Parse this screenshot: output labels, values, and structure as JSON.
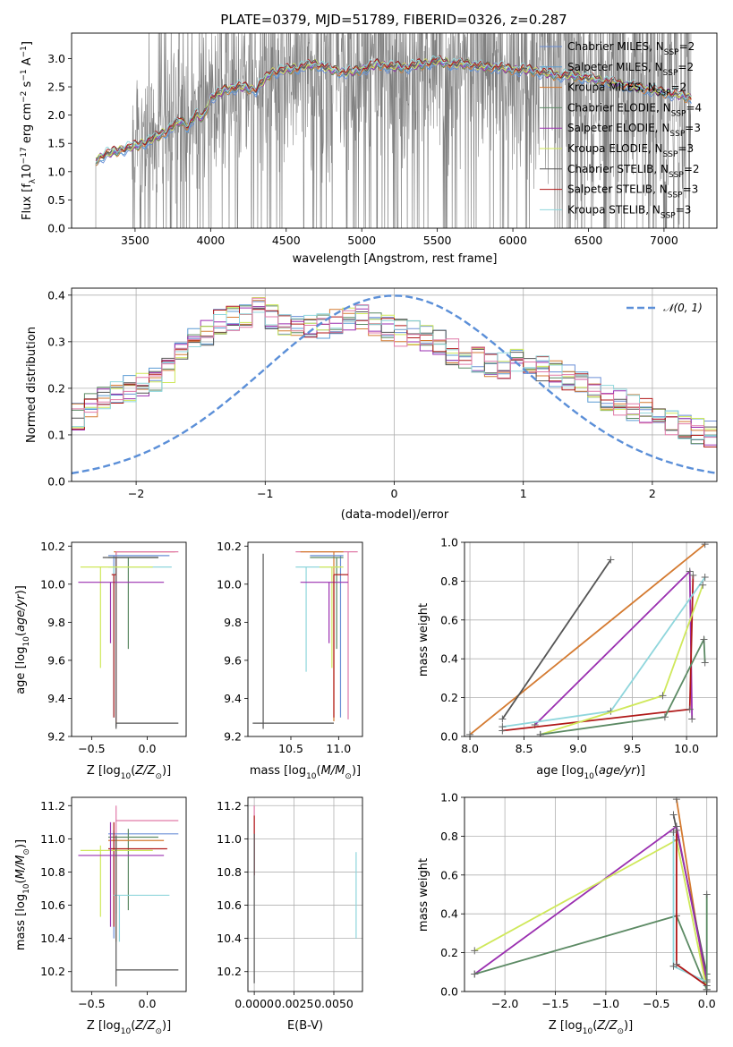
{
  "page": {
    "title": "PLATE=0379, MJD=51789, FIBERID=0326, z=0.287"
  },
  "colors": {
    "cMILES": "#6b8fd6",
    "sMILES": "#5a9bd4",
    "kMILES": "#d47a30",
    "cELODIE": "#5c8a64",
    "sELODIE": "#9a2fb0",
    "kELODIE": "#cfe85a",
    "cSTELIB": "#555555",
    "sSTELIB": "#b01818",
    "kSTELIB": "#8fd6dc",
    "pink": "#e07aa8",
    "normal": "#5b8fd8",
    "spectrum": "#808080"
  },
  "chart_data": [
    {
      "id": "spectrum",
      "type": "line",
      "xlabel": "wavelength [Angstrom, rest frame]",
      "ylabel": "Flux [f_λ 10^-17 erg cm^-2 s^-1 A^-1]",
      "xlim": [
        3080,
        7350
      ],
      "ylim": [
        0,
        3.45
      ],
      "xticks": [
        3500,
        4000,
        4500,
        5000,
        5500,
        6000,
        6500,
        7000
      ],
      "yticks": [
        0.0,
        0.5,
        1.0,
        1.5,
        2.0,
        2.5,
        3.0
      ],
      "grid": false,
      "legend_position": "top-right",
      "data_spectrum_range": [
        3240,
        7180
      ],
      "model_anchors": [
        [
          3240,
          1.2
        ],
        [
          3300,
          1.3
        ],
        [
          3400,
          1.38
        ],
        [
          3500,
          1.45
        ],
        [
          3600,
          1.55
        ],
        [
          3700,
          1.7
        ],
        [
          3800,
          1.9
        ],
        [
          3850,
          1.8
        ],
        [
          3900,
          2.0
        ],
        [
          3950,
          1.95
        ],
        [
          4000,
          2.3
        ],
        [
          4100,
          2.45
        ],
        [
          4200,
          2.5
        ],
        [
          4300,
          2.45
        ],
        [
          4400,
          2.75
        ],
        [
          4500,
          2.8
        ],
        [
          4600,
          2.85
        ],
        [
          4700,
          2.9
        ],
        [
          4800,
          2.8
        ],
        [
          4900,
          2.75
        ],
        [
          5000,
          2.8
        ],
        [
          5100,
          2.9
        ],
        [
          5200,
          2.85
        ],
        [
          5300,
          2.85
        ],
        [
          5400,
          2.9
        ],
        [
          5500,
          2.95
        ],
        [
          5600,
          2.9
        ],
        [
          5700,
          2.9
        ],
        [
          5800,
          2.85
        ],
        [
          5900,
          2.85
        ],
        [
          6000,
          2.8
        ],
        [
          6100,
          2.8
        ],
        [
          6200,
          2.75
        ],
        [
          6300,
          2.7
        ],
        [
          6400,
          2.7
        ],
        [
          6500,
          2.65
        ],
        [
          6600,
          2.6
        ],
        [
          6700,
          2.55
        ],
        [
          6800,
          2.5
        ],
        [
          6900,
          2.45
        ],
        [
          7000,
          2.4
        ],
        [
          7100,
          2.35
        ],
        [
          7180,
          2.3
        ]
      ],
      "legend": [
        "Chabrier MILES, N_SSP=2",
        "Salpeter MILES, N_SSP=2",
        "Kroupa MILES, N_SSP=2",
        "Chabrier ELODIE, N_SSP=4",
        "Salpeter ELODIE, N_SSP=3",
        "Kroupa ELODIE, N_SSP=3",
        "Chabrier STELIB, N_SSP=2",
        "Salpeter STELIB, N_SSP=3",
        "Kroupa STELIB, N_SSP=3"
      ],
      "legend_colors": [
        "cMILES",
        "sMILES",
        "kMILES",
        "cELODIE",
        "sELODIE",
        "kELODIE",
        "cSTELIB",
        "sSTELIB",
        "kSTELIB"
      ]
    },
    {
      "id": "residuals",
      "type": "line",
      "xlabel": "(data-model)/error",
      "ylabel": "Normed distribution",
      "xlim": [
        -2.5,
        2.5
      ],
      "ylim": [
        0,
        0.415
      ],
      "xticks": [
        -2,
        -1,
        0,
        1,
        2
      ],
      "yticks": [
        0.0,
        0.1,
        0.2,
        0.3,
        0.4
      ],
      "grid": true,
      "legend_position": "top-right",
      "legend": [
        "𝒩(0, 1)"
      ],
      "bin_width": 0.1,
      "hist_profile": [
        0.03,
        0.03,
        0.04,
        0.05,
        0.06,
        0.07,
        0.08,
        0.09,
        0.1,
        0.12,
        0.14,
        0.16,
        0.18,
        0.19,
        0.2,
        0.21,
        0.22,
        0.24,
        0.27,
        0.3,
        0.32,
        0.34,
        0.35,
        0.36,
        0.37,
        0.35,
        0.34,
        0.34,
        0.33,
        0.33,
        0.34,
        0.35,
        0.35,
        0.34,
        0.33,
        0.32,
        0.32,
        0.31,
        0.3,
        0.28,
        0.27,
        0.26,
        0.25,
        0.25,
        0.26,
        0.25,
        0.24,
        0.23,
        0.22,
        0.21,
        0.2,
        0.18,
        0.17,
        0.16,
        0.15,
        0.14,
        0.13,
        0.12,
        0.11,
        0.1,
        0.09,
        0.08,
        0.07,
        0.06,
        0.05,
        0.05,
        0.04,
        0.04,
        0.03,
        0.03
      ]
    },
    {
      "id": "age-z",
      "type": "scatter",
      "xlabel": "Z [log10(Z/Z⊙)]",
      "ylabel": "age  [log10(age/yr)]",
      "xlim": [
        -0.68,
        0.35
      ],
      "ylim": [
        9.2,
        10.22
      ],
      "xticks": [
        -0.5,
        0.0
      ],
      "yticks": [
        9.2,
        9.4,
        9.6,
        9.8,
        10.0,
        10.2
      ],
      "grid": false,
      "points": [
        {
          "c": "kMILES",
          "x": -0.28,
          "y": 10.17,
          "x0": -0.3,
          "x1": 0.25,
          "y0": 9.27,
          "y1": 10.17
        },
        {
          "c": "pink",
          "x": -0.28,
          "y": 10.17,
          "x0": -0.28,
          "x1": 0.28,
          "y0": 9.28,
          "y1": 10.17
        },
        {
          "c": "cMILES",
          "x": -0.3,
          "y": 10.15,
          "x0": -0.35,
          "x1": 0.2,
          "y0": 9.3,
          "y1": 10.15
        },
        {
          "c": "cELODIE",
          "x": -0.17,
          "y": 10.14,
          "x0": -0.35,
          "x1": 0.1,
          "y0": 9.66,
          "y1": 10.14
        },
        {
          "c": "cSTELIB",
          "x": -0.28,
          "y": 10.14,
          "x0": -0.4,
          "x1": 0.1,
          "y0": 9.25,
          "y1": 10.14
        },
        {
          "c": "kSTELIB",
          "x": -0.3,
          "y": 10.09,
          "x0": -0.35,
          "x1": 0.22,
          "y0": 9.3,
          "y1": 10.09
        },
        {
          "c": "kELODIE",
          "x": -0.42,
          "y": 10.09,
          "x0": -0.6,
          "x1": 0.05,
          "y0": 9.56,
          "y1": 10.09
        },
        {
          "c": "sELODIE",
          "x": -0.33,
          "y": 10.01,
          "x0": -0.62,
          "x1": 0.15,
          "y0": 9.69,
          "y1": 10.01
        },
        {
          "c": "sSTELIB",
          "x": -0.3,
          "y": 10.05,
          "x0": -0.32,
          "x1": -0.28,
          "y0": 9.3,
          "y1": 10.05
        },
        {
          "c": "cSTELIB",
          "x": -0.28,
          "y": 9.27,
          "x0": -0.28,
          "x1": 0.28,
          "y0": 9.24,
          "y1": 9.27
        }
      ]
    },
    {
      "id": "age-mass",
      "type": "scatter",
      "xlabel": "mass [log10(M/M⊙)]",
      "ylabel": "",
      "xlim": [
        10.05,
        11.25
      ],
      "ylim": [
        9.2,
        10.22
      ],
      "xticks": [
        10.5,
        11.0
      ],
      "yticks": [
        9.2,
        9.4,
        9.6,
        9.8,
        10.0,
        10.2
      ],
      "grid": false,
      "points": [
        {
          "c": "pink",
          "x": 11.1,
          "y": 10.17,
          "x0": 10.55,
          "x1": 11.2,
          "y0": 9.29,
          "y1": 10.17
        },
        {
          "c": "kMILES",
          "x": 10.95,
          "y": 10.17,
          "x0": 10.6,
          "x1": 11.05,
          "y0": 9.28,
          "y1": 10.17
        },
        {
          "c": "cMILES",
          "x": 11.02,
          "y": 10.15,
          "x0": 10.7,
          "x1": 11.05,
          "y0": 9.3,
          "y1": 10.15
        },
        {
          "c": "cELODIE",
          "x": 10.98,
          "y": 10.14,
          "x0": 10.7,
          "x1": 11.05,
          "y0": 9.66,
          "y1": 10.14
        },
        {
          "c": "kSTELIB",
          "x": 10.66,
          "y": 10.09,
          "x0": 10.55,
          "x1": 11.0,
          "y0": 9.54,
          "y1": 10.09
        },
        {
          "c": "kELODIE",
          "x": 10.93,
          "y": 10.09,
          "x0": 10.8,
          "x1": 11.05,
          "y0": 9.56,
          "y1": 10.09
        },
        {
          "c": "sELODIE",
          "x": 10.9,
          "y": 10.01,
          "x0": 10.6,
          "x1": 11.1,
          "y0": 9.69,
          "y1": 10.01
        },
        {
          "c": "sSTELIB",
          "x": 10.95,
          "y": 10.05,
          "x0": 10.95,
          "x1": 11.1,
          "y0": 9.3,
          "y1": 10.05
        },
        {
          "c": "cSTELIB",
          "x": 10.21,
          "y": 9.27,
          "x0": 10.1,
          "x1": 10.95,
          "y0": 9.24,
          "y1": 10.16
        }
      ]
    },
    {
      "id": "mass-weight-age",
      "type": "line",
      "xlabel": "age  [log10(age/yr)]",
      "ylabel": "mass weight",
      "xlim": [
        7.95,
        10.28
      ],
      "ylim": [
        0,
        1.0
      ],
      "xticks": [
        8.0,
        8.5,
        9.0,
        9.5,
        10.0
      ],
      "yticks": [
        0.0,
        0.2,
        0.4,
        0.6,
        0.8,
        1.0
      ],
      "grid": true,
      "series": [
        {
          "c": "kMILES",
          "x": [
            8.0,
            10.17
          ],
          "y": [
            0.01,
            0.99
          ]
        },
        {
          "c": "cSTELIB",
          "x": [
            8.3,
            9.3
          ],
          "y": [
            0.09,
            0.91
          ]
        },
        {
          "c": "sELODIE",
          "x": [
            8.6,
            10.03,
            10.05
          ],
          "y": [
            0.06,
            0.85,
            0.09
          ]
        },
        {
          "c": "sSTELIB",
          "x": [
            8.3,
            10.03,
            10.06
          ],
          "y": [
            0.03,
            0.14,
            0.83
          ]
        },
        {
          "c": "kSTELIB",
          "x": [
            8.3,
            9.3,
            10.17
          ],
          "y": [
            0.05,
            0.13,
            0.82
          ]
        },
        {
          "c": "kELODIE",
          "x": [
            8.65,
            9.78,
            10.15
          ],
          "y": [
            0.01,
            0.21,
            0.78
          ]
        },
        {
          "c": "cELODIE",
          "x": [
            8.65,
            9.8,
            10.16,
            10.17
          ],
          "y": [
            0.01,
            0.1,
            0.5,
            0.38
          ]
        }
      ]
    },
    {
      "id": "mass-z",
      "type": "scatter",
      "xlabel": "Z [log10(Z/Z⊙)]",
      "ylabel": "mass [log10(M/M⊙)]",
      "xlim": [
        -0.68,
        0.35
      ],
      "ylim": [
        10.08,
        11.25
      ],
      "xticks": [
        -0.5,
        0.0
      ],
      "yticks": [
        10.2,
        10.4,
        10.6,
        10.8,
        11.0,
        11.2
      ],
      "grid": false,
      "points": [
        {
          "c": "pink",
          "x": -0.28,
          "y": 11.11,
          "x0": -0.28,
          "x1": 0.28,
          "y0": 10.55,
          "y1": 11.2
        },
        {
          "c": "cMILES",
          "x": -0.3,
          "y": 11.03,
          "x0": -0.35,
          "x1": 0.28,
          "y0": 10.4,
          "y1": 11.05
        },
        {
          "c": "cELODIE",
          "x": -0.17,
          "y": 11.01,
          "x0": -0.35,
          "x1": 0.1,
          "y0": 10.57,
          "y1": 11.06
        },
        {
          "c": "kMILES",
          "x": -0.28,
          "y": 10.99,
          "x0": -0.35,
          "x1": 0.15,
          "y0": 10.38,
          "y1": 11.0
        },
        {
          "c": "sSTELIB",
          "x": -0.3,
          "y": 10.94,
          "x0": -0.35,
          "x1": 0.18,
          "y0": 10.47,
          "y1": 11.1
        },
        {
          "c": "kELODIE",
          "x": -0.42,
          "y": 10.93,
          "x0": -0.6,
          "x1": 0.05,
          "y0": 10.53,
          "y1": 10.96
        },
        {
          "c": "sELODIE",
          "x": -0.33,
          "y": 10.9,
          "x0": -0.62,
          "x1": 0.15,
          "y0": 10.47,
          "y1": 11.1
        },
        {
          "c": "kSTELIB",
          "x": -0.25,
          "y": 10.66,
          "x0": -0.3,
          "x1": 0.2,
          "y0": 10.38,
          "y1": 10.66
        },
        {
          "c": "cSTELIB",
          "x": -0.28,
          "y": 10.21,
          "x0": -0.28,
          "x1": 0.28,
          "y0": 10.11,
          "y1": 11.02
        }
      ]
    },
    {
      "id": "mass-ebv",
      "type": "scatter",
      "xlabel": "E(B-V)",
      "ylabel": "",
      "xlim": [
        -0.0004,
        0.0068
      ],
      "ylim": [
        10.08,
        11.25
      ],
      "xticks": [
        0.0,
        0.0025,
        0.005
      ],
      "xticklabels": [
        "0.0000",
        "0.0025",
        "0.0050"
      ],
      "yticks": [
        10.2,
        10.4,
        10.6,
        10.8,
        11.0,
        11.2
      ],
      "grid": true,
      "points": [
        {
          "c": "pink",
          "x": 0.0,
          "y": 11.0,
          "y0": 10.78,
          "y1": 11.2
        },
        {
          "c": "sSTELIB",
          "x": 0.0,
          "y": 10.95,
          "y0": 10.78,
          "y1": 11.14
        },
        {
          "c": "cSTELIB",
          "x": 0.0,
          "y": 10.6,
          "y0": 10.13,
          "y1": 11.03
        },
        {
          "c": "kSTELIB",
          "x": 0.0064,
          "y": 10.66,
          "y0": 10.4,
          "y1": 10.92
        }
      ]
    },
    {
      "id": "mass-weight-z",
      "type": "line",
      "xlabel": "Z [log10(Z/Z⊙)]",
      "ylabel": "mass weight",
      "xlim": [
        -2.4,
        0.1
      ],
      "ylim": [
        0,
        1.0
      ],
      "xticks": [
        -2.0,
        -1.5,
        -1.0,
        -0.5,
        0.0
      ],
      "yticks": [
        0.0,
        0.2,
        0.4,
        0.6,
        0.8,
        1.0
      ],
      "grid": true,
      "series": [
        {
          "c": "kMILES",
          "x": [
            -0.3,
            0.0
          ],
          "y": [
            0.99,
            0.01
          ]
        },
        {
          "c": "cSTELIB",
          "x": [
            -0.33,
            0.0
          ],
          "y": [
            0.91,
            0.09
          ]
        },
        {
          "c": "sELODIE",
          "x": [
            -2.3,
            -0.3,
            0.0
          ],
          "y": [
            0.09,
            0.85,
            0.06
          ]
        },
        {
          "c": "kELODIE",
          "x": [
            -2.3,
            -0.3,
            0.0
          ],
          "y": [
            0.21,
            0.78,
            0.01
          ]
        },
        {
          "c": "cELODIE",
          "x": [
            -2.3,
            -0.3,
            0.0,
            0.0
          ],
          "y": [
            0.09,
            0.39,
            0.01,
            0.5
          ]
        },
        {
          "c": "kSTELIB",
          "x": [
            -0.33,
            -0.33,
            0.0
          ],
          "y": [
            0.82,
            0.13,
            0.05
          ]
        },
        {
          "c": "sSTELIB",
          "x": [
            -0.3,
            -0.3,
            0.0
          ],
          "y": [
            0.83,
            0.14,
            0.03
          ]
        }
      ]
    }
  ]
}
